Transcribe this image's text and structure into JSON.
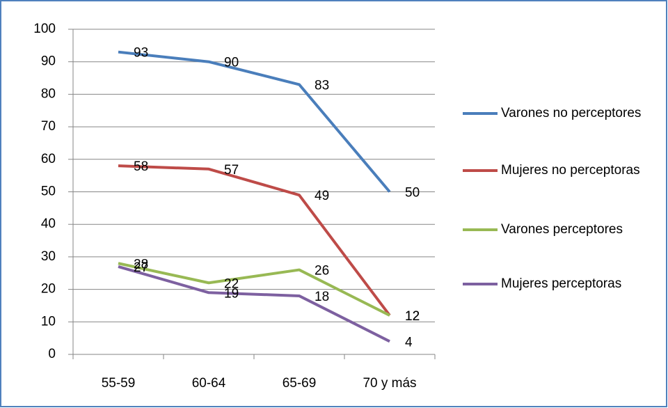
{
  "chart_data": {
    "type": "line",
    "categories": [
      "55-59",
      "60-64",
      "65-69",
      "70 y más"
    ],
    "series": [
      {
        "name": "Varones no perceptores",
        "color": "#4a7ebb",
        "values": [
          93,
          90,
          83,
          50
        ]
      },
      {
        "name": "Mujeres no perceptoras",
        "color": "#be4b48",
        "values": [
          58,
          57,
          49,
          12
        ]
      },
      {
        "name": "Varones perceptores",
        "color": "#98b954",
        "values": [
          28,
          22,
          26,
          12
        ]
      },
      {
        "name": "Mujeres perceptoras",
        "color": "#7d60a0",
        "values": [
          27,
          19,
          18,
          4
        ]
      }
    ],
    "ylim": [
      0,
      100
    ],
    "yticks": [
      0,
      10,
      20,
      30,
      40,
      50,
      60,
      70,
      80,
      90,
      100
    ],
    "grid": true,
    "legend": "right"
  }
}
